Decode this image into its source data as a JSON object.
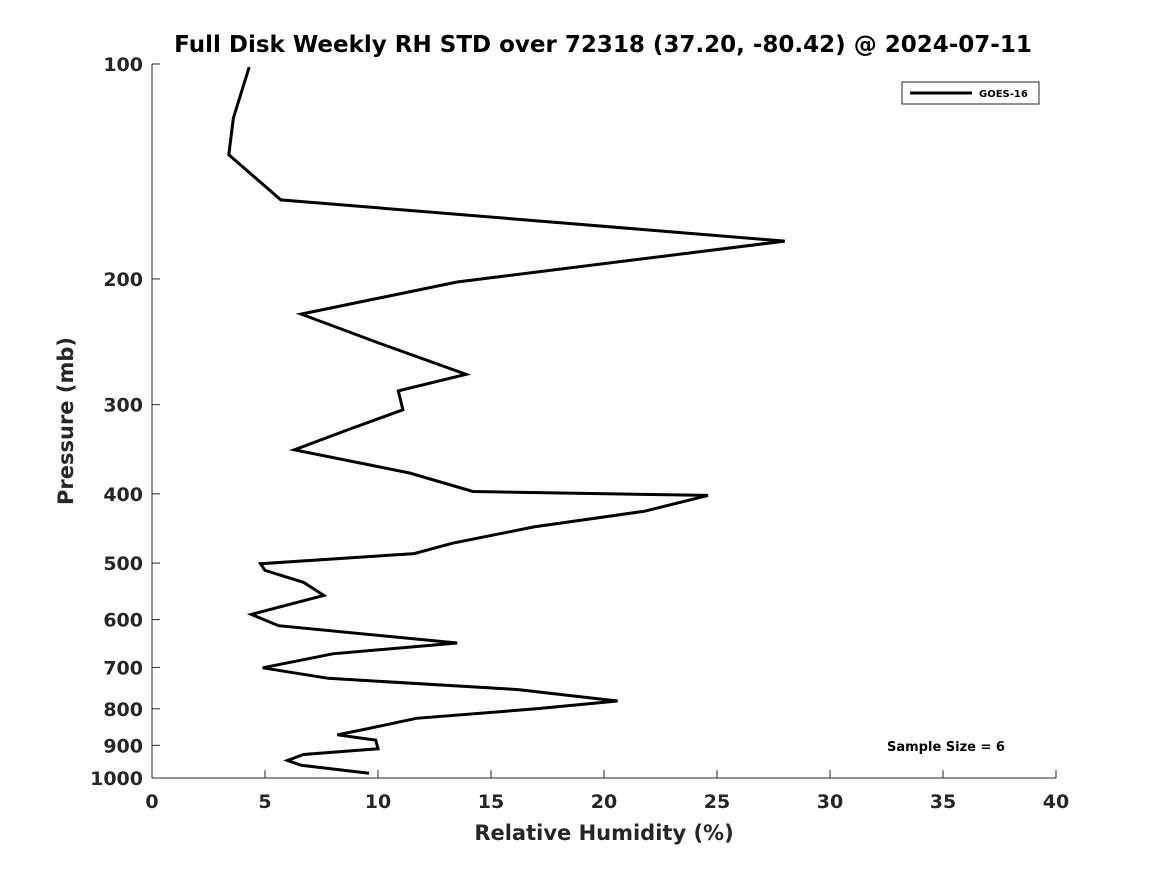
{
  "chart_data": {
    "type": "line",
    "title": "Full Disk Weekly RH STD over 72318 (37.20, -80.42) @ 2024-07-11",
    "xlabel": "Relative Humidity (%)",
    "ylabel": "Pressure (mb)",
    "xlim": [
      0,
      40
    ],
    "ylim": [
      100,
      1000
    ],
    "y_scale": "log",
    "y_reversed": true,
    "x_ticks": [
      0,
      5,
      10,
      15,
      20,
      25,
      30,
      35,
      40
    ],
    "y_ticks": [
      100,
      200,
      300,
      400,
      500,
      600,
      700,
      800,
      900,
      1000
    ],
    "grid": false,
    "legend_position": "top-right",
    "annotation": "Sample Size = 6",
    "series": [
      {
        "name": "GOES-16",
        "color": "#000000",
        "x": [
          4.3,
          3.6,
          3.4,
          5.7,
          28.0,
          13.5,
          6.6,
          9.9,
          13.9,
          10.9,
          11.1,
          8.7,
          6.3,
          11.4,
          14.2,
          24.6,
          21.8,
          16.9,
          13.3,
          11.6,
          4.8,
          5.0,
          6.7,
          7.6,
          4.4,
          5.6,
          13.5,
          8.0,
          4.9,
          7.8,
          16.2,
          20.6,
          17.0,
          11.7,
          9.4,
          8.2,
          9.9,
          10.0,
          6.7,
          6.0,
          6.6,
          9.6
        ],
        "y": [
          101,
          119,
          134,
          155,
          177,
          202,
          224,
          245,
          272,
          287,
          305,
          325,
          347,
          374,
          397,
          402,
          423,
          445,
          469,
          485,
          501,
          512,
          532,
          555,
          590,
          612,
          647,
          670,
          701,
          725,
          752,
          780,
          800,
          825,
          855,
          870,
          885,
          910,
          927,
          945,
          960,
          985
        ]
      }
    ]
  }
}
